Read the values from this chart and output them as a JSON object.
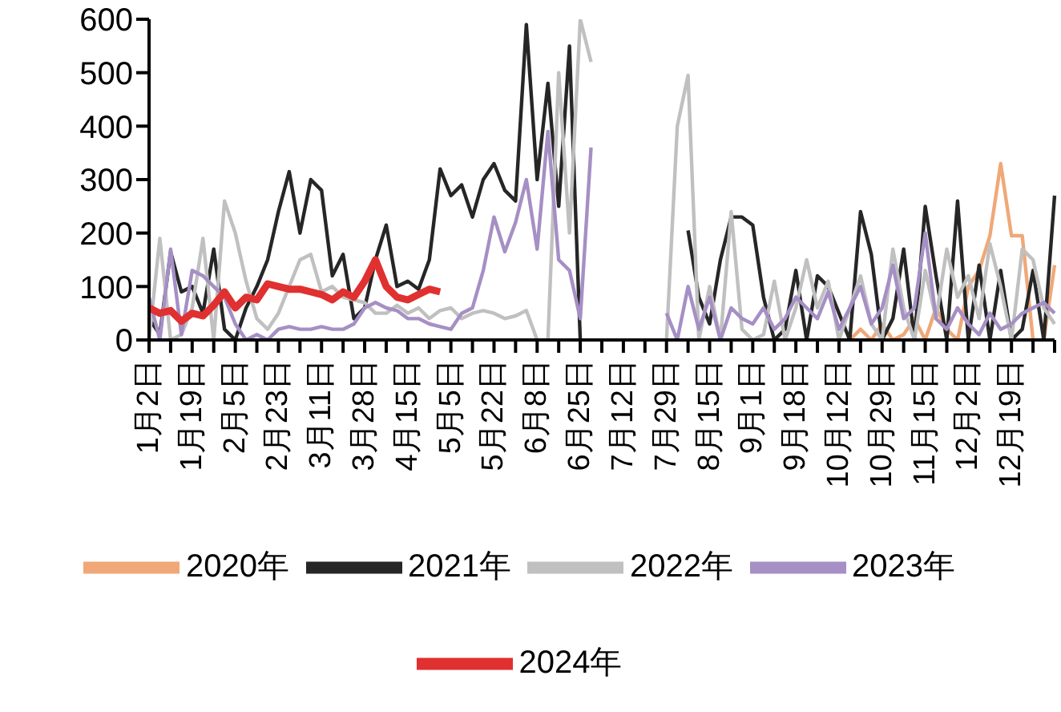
{
  "chart_data": {
    "type": "line",
    "categories": [
      "1月2日",
      null,
      null,
      null,
      "1月19日",
      null,
      null,
      null,
      "2月5日",
      null,
      null,
      null,
      "2月23日",
      null,
      null,
      null,
      "3月11日",
      null,
      null,
      null,
      "3月28日",
      null,
      null,
      null,
      "4月15日",
      null,
      null,
      null,
      "5月5日",
      null,
      null,
      null,
      "5月22日",
      null,
      null,
      null,
      "6月8日",
      null,
      null,
      null,
      "6月25日",
      null,
      null,
      null,
      "7月12日",
      null,
      null,
      null,
      "7月29日",
      null,
      null,
      null,
      "8月15日",
      null,
      null,
      null,
      "9月1日",
      null,
      null,
      null,
      "9月18日",
      null,
      null,
      null,
      "10月12日",
      null,
      null,
      null,
      "10月29日",
      null,
      null,
      null,
      "11月15日",
      null,
      null,
      null,
      "12月2日",
      null,
      null,
      null,
      "12月19日",
      null,
      null,
      null,
      null
    ],
    "ylim": [
      0,
      600
    ],
    "yticks": [
      0,
      100,
      200,
      300,
      400,
      500,
      600
    ],
    "grid": false,
    "legend": "bottom",
    "series": [
      {
        "name": "2020年",
        "color": "#f0a878",
        "values": [
          null,
          null,
          null,
          null,
          null,
          null,
          null,
          null,
          null,
          null,
          null,
          null,
          null,
          null,
          null,
          null,
          null,
          null,
          null,
          null,
          null,
          null,
          null,
          null,
          null,
          null,
          null,
          null,
          null,
          null,
          null,
          null,
          null,
          null,
          null,
          null,
          null,
          null,
          null,
          null,
          null,
          null,
          null,
          null,
          null,
          null,
          null,
          null,
          null,
          null,
          null,
          null,
          null,
          null,
          null,
          null,
          null,
          null,
          null,
          null,
          null,
          null,
          null,
          null,
          0,
          0,
          20,
          0,
          30,
          0,
          10,
          40,
          0,
          60,
          20,
          0,
          100,
          130,
          195,
          330,
          195,
          195,
          0,
          0,
          140
        ]
      },
      {
        "name": "2021年",
        "color": "#262626",
        "values": [
          40,
          10,
          165,
          90,
          100,
          50,
          170,
          20,
          0,
          60,
          100,
          150,
          240,
          315,
          200,
          300,
          280,
          120,
          160,
          40,
          60,
          150,
          215,
          100,
          110,
          95,
          150,
          320,
          270,
          290,
          230,
          300,
          330,
          280,
          260,
          590,
          300,
          480,
          250,
          550,
          0,
          null,
          null,
          null,
          null,
          null,
          null,
          null,
          null,
          null,
          205,
          80,
          30,
          150,
          230,
          230,
          215,
          80,
          0,
          20,
          130,
          0,
          120,
          100,
          50,
          0,
          240,
          160,
          0,
          40,
          170,
          0,
          250,
          120,
          0,
          260,
          0,
          140,
          0,
          130,
          0,
          20,
          130,
          0,
          270
        ]
      },
      {
        "name": "2022年",
        "color": "#c0c0c0",
        "values": [
          0,
          190,
          0,
          10,
          60,
          190,
          0,
          260,
          200,
          110,
          40,
          20,
          50,
          100,
          150,
          160,
          90,
          100,
          80,
          75,
          70,
          50,
          50,
          65,
          50,
          60,
          40,
          55,
          60,
          40,
          50,
          55,
          50,
          40,
          45,
          55,
          0,
          0,
          500,
          200,
          600,
          520,
          null,
          null,
          null,
          null,
          null,
          null,
          0,
          400,
          495,
          0,
          100,
          0,
          240,
          20,
          0,
          10,
          110,
          0,
          60,
          150,
          60,
          110,
          0,
          60,
          120,
          30,
          0,
          170,
          60,
          0,
          130,
          40,
          170,
          80,
          120,
          40,
          180,
          100,
          0,
          170,
          150,
          60,
          30
        ]
      },
      {
        "name": "2023年",
        "color": "#a58fc4",
        "values": [
          80,
          0,
          170,
          10,
          130,
          120,
          100,
          80,
          30,
          0,
          10,
          0,
          20,
          25,
          20,
          20,
          25,
          20,
          20,
          30,
          60,
          70,
          60,
          55,
          40,
          40,
          30,
          25,
          20,
          50,
          60,
          130,
          230,
          165,
          220,
          300,
          170,
          390,
          150,
          130,
          40,
          360,
          null,
          null,
          null,
          null,
          null,
          null,
          50,
          0,
          100,
          20,
          80,
          0,
          60,
          40,
          30,
          60,
          20,
          40,
          80,
          60,
          40,
          90,
          20,
          60,
          100,
          30,
          60,
          140,
          40,
          60,
          200,
          40,
          20,
          60,
          30,
          10,
          50,
          20,
          30,
          50,
          60,
          70,
          50
        ]
      },
      {
        "name": "2024年",
        "color": "#e03030",
        "values": [
          60,
          50,
          55,
          35,
          50,
          45,
          65,
          90,
          60,
          80,
          75,
          105,
          100,
          95,
          95,
          90,
          85,
          75,
          90,
          80,
          110,
          150,
          100,
          80,
          75,
          85,
          95,
          90,
          null,
          null,
          null,
          null,
          null,
          null,
          null,
          null,
          null,
          null,
          null,
          null,
          null,
          null,
          null,
          null,
          null,
          null,
          null,
          null,
          null,
          null,
          null,
          null,
          null,
          null,
          null,
          null,
          null,
          null,
          null,
          null,
          null,
          null,
          null,
          null,
          null,
          null,
          null,
          null,
          null,
          null,
          null,
          null,
          null,
          null,
          null,
          null,
          null,
          null,
          null,
          null,
          null,
          null,
          null,
          null,
          null
        ]
      }
    ]
  }
}
